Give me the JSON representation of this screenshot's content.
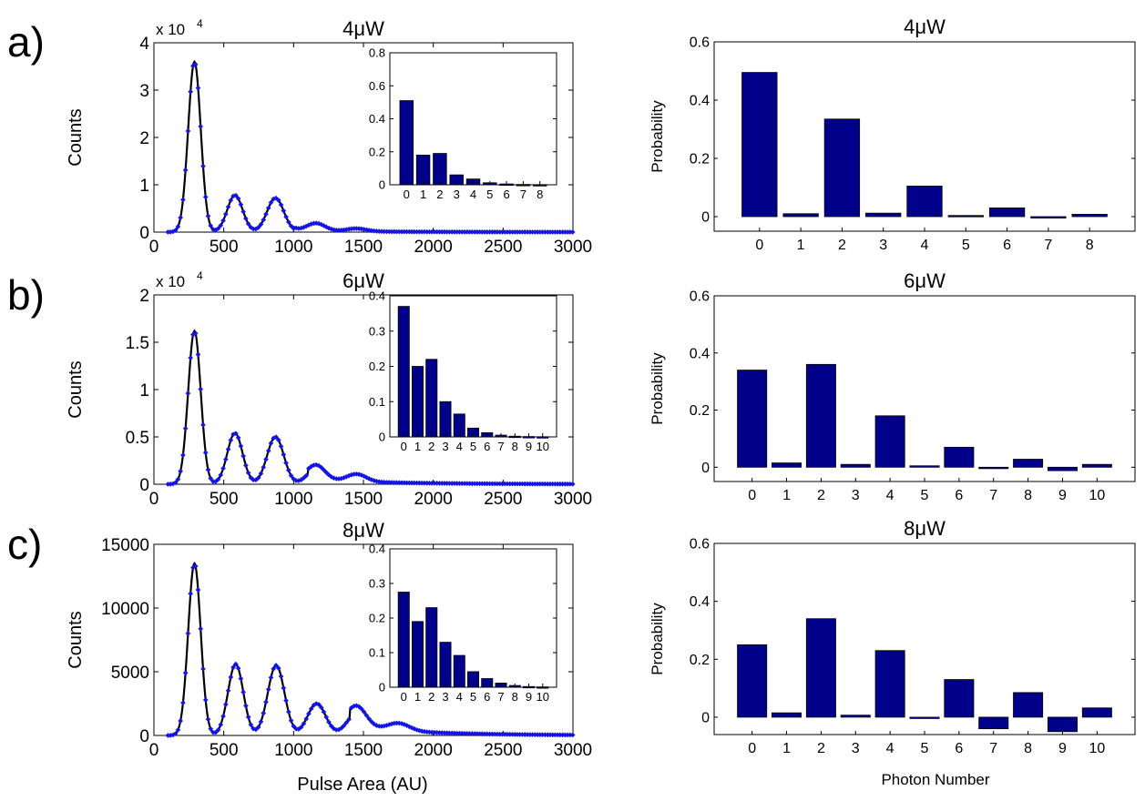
{
  "figure": {
    "xlabel_left": "Pulse Area (AU)",
    "xlabel_right": "Photon Number",
    "colors": {
      "bar": "#00008B",
      "fit": "#000000",
      "points": "#1414E6"
    }
  },
  "chart_data": [
    {
      "id": "a-hist",
      "type": "line",
      "panel_label": "a)",
      "title": "4μW",
      "ylabel": "Counts",
      "exponent_label": "x 10",
      "exponent": "4",
      "xlim": [
        0,
        3000
      ],
      "ylim": [
        0,
        4
      ],
      "xticks": [
        0,
        500,
        1000,
        1500,
        2000,
        2500,
        3000
      ],
      "yticks": [
        0,
        1,
        2,
        3,
        4
      ],
      "xtick_labels": [
        "0",
        "500",
        "1000",
        "1500",
        "2000",
        "2500",
        "3000"
      ],
      "ytick_labels": [
        "0",
        "1",
        "2",
        "3",
        "4"
      ],
      "peaks": [
        {
          "center": 290,
          "amplitude": 3.6,
          "width": 45
        },
        {
          "center": 580,
          "amplitude": 0.78,
          "width": 55
        },
        {
          "center": 870,
          "amplitude": 0.72,
          "width": 60
        },
        {
          "center": 1160,
          "amplitude": 0.16,
          "width": 65
        },
        {
          "center": 1450,
          "amplitude": 0.06,
          "width": 70
        }
      ],
      "tail": {
        "amplitude": 0.04,
        "start": 1000,
        "decay": 500
      },
      "x_range": [
        100,
        3000
      ]
    },
    {
      "id": "a-inset",
      "type": "bar",
      "categories": [
        "0",
        "1",
        "2",
        "3",
        "4",
        "5",
        "6",
        "7",
        "8"
      ],
      "values": [
        0.51,
        0.18,
        0.19,
        0.06,
        0.035,
        0.012,
        0.005,
        0.002,
        0.001
      ],
      "ylim": [
        0,
        0.8
      ],
      "yticks": [
        0,
        0.2,
        0.4,
        0.6,
        0.8
      ],
      "ytick_labels": [
        "0",
        "0.2",
        "0.4",
        "0.6",
        "0.8"
      ]
    },
    {
      "id": "a-prob",
      "type": "bar",
      "title": "4μW",
      "ylabel": "Probability",
      "categories": [
        "0",
        "1",
        "2",
        "3",
        "4",
        "5",
        "6",
        "7",
        "8"
      ],
      "values": [
        0.495,
        0.01,
        0.335,
        0.012,
        0.105,
        0.004,
        0.03,
        -0.005,
        0.008
      ],
      "ylim": [
        -0.05,
        0.6
      ],
      "yticks": [
        0,
        0.2,
        0.4,
        0.6
      ],
      "ytick_labels": [
        "0",
        "0.2",
        "0.4",
        "0.6"
      ]
    },
    {
      "id": "b-hist",
      "type": "line",
      "panel_label": "b)",
      "title": "6μW",
      "ylabel": "Counts",
      "exponent_label": "x 10",
      "exponent": "4",
      "xlim": [
        0,
        3000
      ],
      "ylim": [
        0,
        2
      ],
      "xticks": [
        0,
        500,
        1000,
        1500,
        2000,
        2500,
        3000
      ],
      "yticks": [
        0,
        0.5,
        1,
        1.5,
        2
      ],
      "xtick_labels": [
        "0",
        "500",
        "1000",
        "1500",
        "2000",
        "2500",
        "3000"
      ],
      "ytick_labels": [
        "0",
        "0.5",
        "1",
        "1.5",
        "2"
      ],
      "peaks": [
        {
          "center": 290,
          "amplitude": 1.62,
          "width": 45
        },
        {
          "center": 580,
          "amplitude": 0.54,
          "width": 55
        },
        {
          "center": 870,
          "amplitude": 0.5,
          "width": 60
        },
        {
          "center": 1160,
          "amplitude": 0.16,
          "width": 65
        },
        {
          "center": 1450,
          "amplitude": 0.08,
          "width": 70
        }
      ],
      "tail": {
        "amplitude": 0.05,
        "start": 1100,
        "decay": 600
      },
      "x_range": [
        100,
        3000
      ]
    },
    {
      "id": "b-inset",
      "type": "bar",
      "categories": [
        "0",
        "1",
        "2",
        "3",
        "4",
        "5",
        "6",
        "7",
        "8",
        "9",
        "10"
      ],
      "values": [
        0.37,
        0.2,
        0.22,
        0.1,
        0.065,
        0.025,
        0.012,
        0.005,
        0.002,
        0.001,
        0.0005
      ],
      "ylim": [
        0,
        0.4
      ],
      "yticks": [
        0,
        0.1,
        0.2,
        0.3,
        0.4
      ],
      "ytick_labels": [
        "0",
        "0.1",
        "0.2",
        "0.3",
        "0.4"
      ]
    },
    {
      "id": "b-prob",
      "type": "bar",
      "title": "6μW",
      "ylabel": "Probability",
      "categories": [
        "0",
        "1",
        "2",
        "3",
        "4",
        "5",
        "6",
        "7",
        "8",
        "9",
        "10"
      ],
      "values": [
        0.34,
        0.015,
        0.36,
        0.01,
        0.18,
        0.005,
        0.07,
        -0.005,
        0.028,
        -0.012,
        0.01
      ],
      "ylim": [
        -0.05,
        0.6
      ],
      "yticks": [
        0,
        0.2,
        0.4,
        0.6
      ],
      "ytick_labels": [
        "0",
        "0.2",
        "0.4",
        "0.6"
      ]
    },
    {
      "id": "c-hist",
      "type": "line",
      "panel_label": "c)",
      "title": "8μW",
      "ylabel": "Counts",
      "exponent_label": "",
      "exponent": "",
      "xlim": [
        0,
        3000
      ],
      "ylim": [
        0,
        15000
      ],
      "xticks": [
        0,
        500,
        1000,
        1500,
        2000,
        2500,
        3000
      ],
      "yticks": [
        0,
        5000,
        10000,
        15000
      ],
      "xtick_labels": [
        "0",
        "500",
        "1000",
        "1500",
        "2000",
        "2500",
        "3000"
      ],
      "ytick_labels": [
        "0",
        "5000",
        "10000",
        "15000"
      ],
      "peaks": [
        {
          "center": 290,
          "amplitude": 13500,
          "width": 45
        },
        {
          "center": 585,
          "amplitude": 5600,
          "width": 55
        },
        {
          "center": 875,
          "amplitude": 5500,
          "width": 60
        },
        {
          "center": 1165,
          "amplitude": 2500,
          "width": 65
        },
        {
          "center": 1450,
          "amplitude": 1700,
          "width": 70
        },
        {
          "center": 1750,
          "amplitude": 600,
          "width": 80
        }
      ],
      "tail": {
        "amplitude": 700,
        "start": 1400,
        "decay": 550
      },
      "x_range": [
        100,
        3000
      ]
    },
    {
      "id": "c-inset",
      "type": "bar",
      "categories": [
        "0",
        "1",
        "2",
        "3",
        "4",
        "5",
        "6",
        "7",
        "8",
        "9",
        "10"
      ],
      "values": [
        0.275,
        0.19,
        0.23,
        0.13,
        0.092,
        0.045,
        0.025,
        0.012,
        0.005,
        0.002,
        0.001
      ],
      "ylim": [
        0,
        0.4
      ],
      "yticks": [
        0,
        0.1,
        0.2,
        0.3,
        0.4
      ],
      "ytick_labels": [
        "0",
        "0.1",
        "0.2",
        "0.3",
        "0.4"
      ]
    },
    {
      "id": "c-prob",
      "type": "bar",
      "title": "8μW",
      "ylabel": "Probability",
      "categories": [
        "0",
        "1",
        "2",
        "3",
        "4",
        "5",
        "6",
        "7",
        "8",
        "9",
        "10"
      ],
      "values": [
        0.25,
        0.015,
        0.34,
        0.007,
        0.23,
        -0.003,
        0.13,
        -0.04,
        0.085,
        -0.05,
        0.032
      ],
      "ylim": [
        -0.06,
        0.6
      ],
      "yticks": [
        0,
        0.2,
        0.4,
        0.6
      ],
      "ytick_labels": [
        "0",
        "0.2",
        "0.4",
        "0.6"
      ]
    }
  ]
}
